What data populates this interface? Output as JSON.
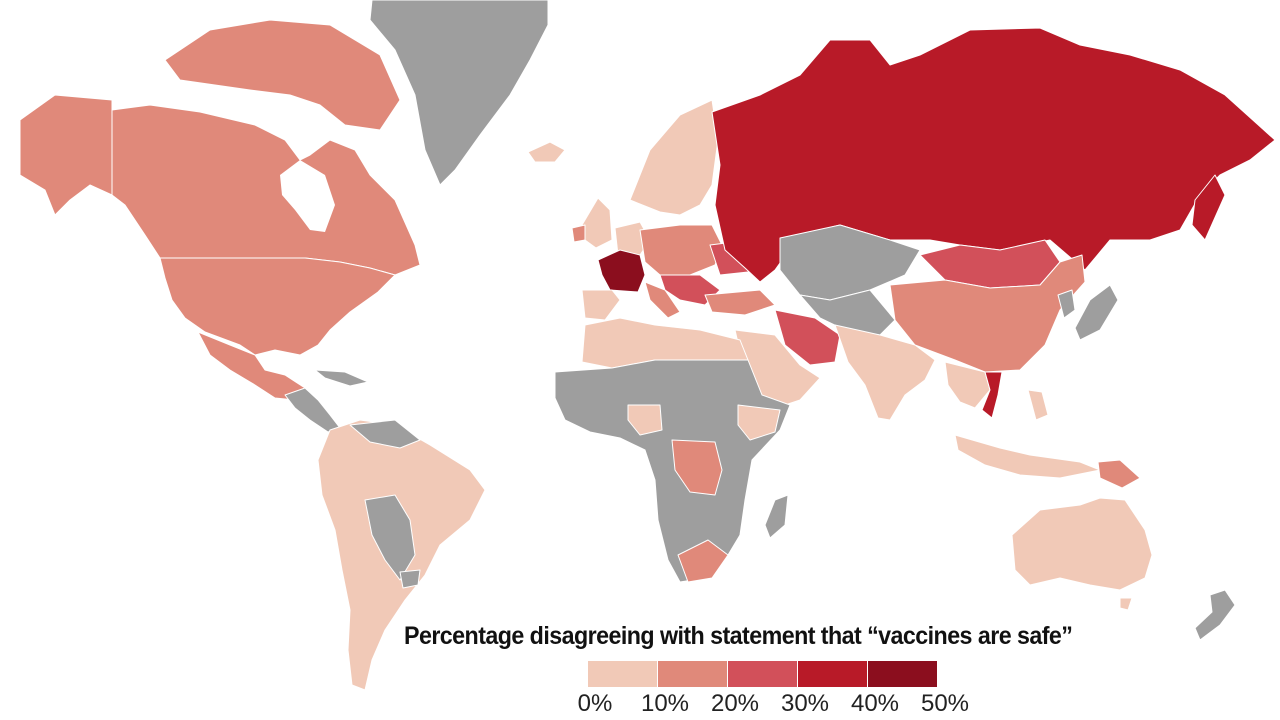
{
  "legend": {
    "title": "Percentage disagreeing with statement that “vaccines are safe”",
    "ticks": [
      "0%",
      "10%",
      "20%",
      "30%",
      "40%",
      "50%"
    ],
    "bins": [
      {
        "range": "0-10%",
        "color": "#f1c9b7"
      },
      {
        "range": "10-20%",
        "color": "#e0897a"
      },
      {
        "range": "20-30%",
        "color": "#d2505a"
      },
      {
        "range": "30-40%",
        "color": "#b81a28"
      },
      {
        "range": "40-50%",
        "color": "#8b0e1e"
      }
    ]
  },
  "colors": {
    "no_data": "#9e9e9e",
    "border": "#ffffff",
    "background": "#ffffff"
  },
  "regions": [
    {
      "name": "Greenland",
      "bin": "no-data"
    },
    {
      "name": "Canada",
      "bin": "10-20%"
    },
    {
      "name": "Alaska",
      "bin": "10-20%"
    },
    {
      "name": "United States",
      "bin": "10-20%"
    },
    {
      "name": "Mexico",
      "bin": "10-20%"
    },
    {
      "name": "Central America",
      "bin": "no-data"
    },
    {
      "name": "South America",
      "bin": "0-10%"
    },
    {
      "name": "Iceland",
      "bin": "0-10%"
    },
    {
      "name": "Northern Europe",
      "bin": "0-10%"
    },
    {
      "name": "France",
      "bin": "40-50%"
    },
    {
      "name": "Eastern Europe",
      "bin": "10-20%"
    },
    {
      "name": "Ukraine",
      "bin": "20-30%"
    },
    {
      "name": "Russia",
      "bin": "30-40%"
    },
    {
      "name": "Kazakhstan",
      "bin": "no-data"
    },
    {
      "name": "Mongolia",
      "bin": "20-30%"
    },
    {
      "name": "China",
      "bin": "10-20%"
    },
    {
      "name": "Iran",
      "bin": "20-30%"
    },
    {
      "name": "India",
      "bin": "0-10%"
    },
    {
      "name": "Vietnam",
      "bin": "30-40%"
    },
    {
      "name": "Japan",
      "bin": "no-data"
    },
    {
      "name": "Indonesia",
      "bin": "0-10%"
    },
    {
      "name": "Papua New Guinea",
      "bin": "10-20%"
    },
    {
      "name": "Australia",
      "bin": "0-10%"
    },
    {
      "name": "New Zealand",
      "bin": "no-data"
    },
    {
      "name": "Africa",
      "bin": "no-data"
    },
    {
      "name": "DR Congo",
      "bin": "10-20%"
    },
    {
      "name": "South Africa",
      "bin": "10-20%"
    },
    {
      "name": "Arabian Peninsula",
      "bin": "0-10%"
    }
  ]
}
